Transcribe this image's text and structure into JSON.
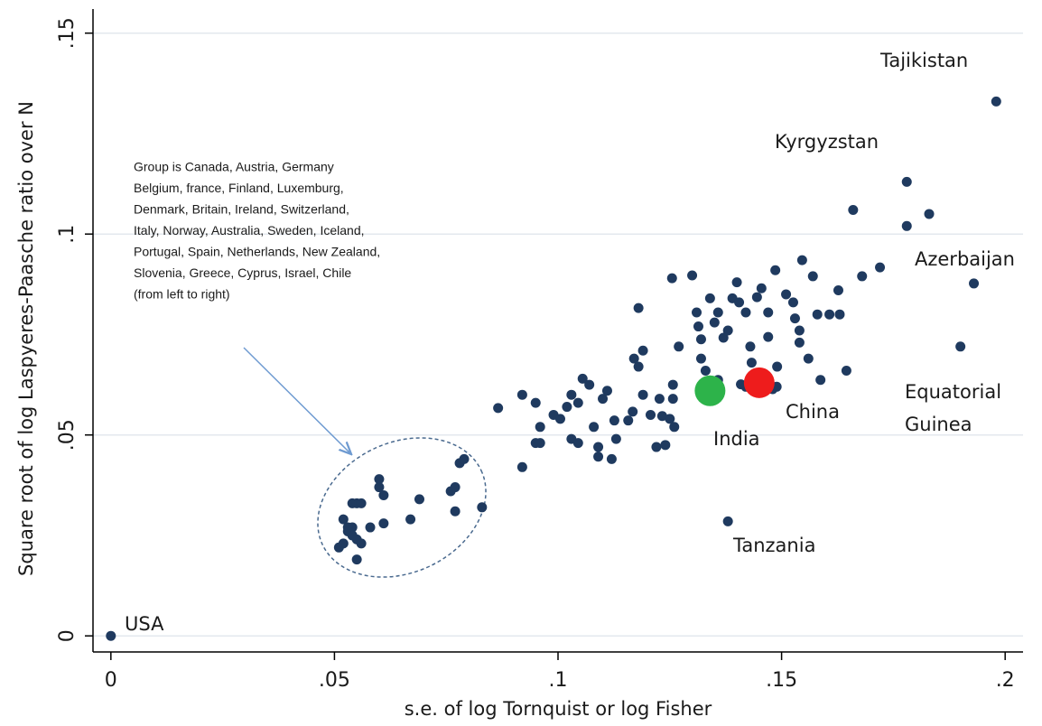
{
  "chart_data": {
    "type": "scatter",
    "x_label": "s.e. of log Tornquist or log Fisher",
    "y_label": "Square root of log Laspyeres-Paasche ratio over N",
    "xlim": [
      -0.004,
      0.204
    ],
    "ylim": [
      -0.004,
      0.156
    ],
    "xticks": [
      0,
      {
        "value": 0.05,
        "label": ".05"
      },
      {
        "value": 0.1,
        "label": ".1"
      },
      {
        "value": 0.15,
        "label": ".15"
      },
      {
        "value": 0.2,
        "label": ".2"
      }
    ],
    "yticks": [
      0,
      {
        "value": 0.05,
        "label": ".05"
      },
      {
        "value": 0.1,
        "label": ".1"
      },
      {
        "value": 0.15,
        "label": ".15"
      }
    ],
    "grid": true,
    "series": [
      {
        "color": "#1f3a5f",
        "x": [
          0,
          0.138,
          0.198,
          0.178,
          0.178,
          0.183,
          0.166,
          0.193,
          0.19,
          0.051,
          0.052,
          0.053,
          0.054,
          0.054,
          0.055,
          0.055,
          0.056,
          0.054,
          0.055,
          0.056,
          0.052,
          0.053,
          0.058,
          0.061,
          0.06,
          0.06,
          0.061,
          0.067,
          0.069,
          0.076,
          0.077,
          0.077,
          0.078,
          0.079,
          0.083,
          0.0866,
          0.092,
          0.092,
          0.095,
          0.096,
          0.095,
          0.096,
          0.099,
          0.1005,
          0.102,
          0.103,
          0.1045,
          0.1055,
          0.107,
          0.103,
          0.1045,
          0.108,
          0.109,
          0.109,
          0.112,
          0.11,
          0.111,
          0.1126,
          0.113,
          0.1157,
          0.1167,
          0.117,
          0.118,
          0.118,
          0.119,
          0.1207,
          0.119,
          0.1227,
          0.1233,
          0.122,
          0.124,
          0.125,
          0.126,
          0.1255,
          0.13,
          0.1257,
          0.1257,
          0.127,
          0.131,
          0.1314,
          0.132,
          0.132,
          0.133,
          0.134,
          0.135,
          0.1358,
          0.137,
          0.138,
          0.139,
          0.14,
          0.1405,
          0.142,
          0.143,
          0.1433,
          0.1445,
          0.1455,
          0.147,
          0.147,
          0.1486,
          0.148,
          0.149,
          0.151,
          0.1526,
          0.153,
          0.154,
          0.154,
          0.1546,
          0.157,
          0.156,
          0.158,
          0.1587,
          0.1607,
          0.1627,
          0.163,
          0.1645,
          0.168,
          0.172,
          0.1409,
          0.142,
          0.1489,
          0.1358
        ],
        "values": [
          0,
          0.0285,
          0.133,
          0.113,
          0.102,
          0.105,
          0.106,
          0.0877,
          0.072,
          0.022,
          0.023,
          0.026,
          0.027,
          0.025,
          0.024,
          0.019,
          0.023,
          0.033,
          0.033,
          0.033,
          0.029,
          0.027,
          0.027,
          0.028,
          0.037,
          0.039,
          0.035,
          0.029,
          0.034,
          0.036,
          0.037,
          0.031,
          0.043,
          0.044,
          0.032,
          0.0567,
          0.06,
          0.042,
          0.058,
          0.052,
          0.048,
          0.048,
          0.055,
          0.054,
          0.057,
          0.06,
          0.058,
          0.064,
          0.0625,
          0.049,
          0.048,
          0.052,
          0.047,
          0.0446,
          0.044,
          0.059,
          0.061,
          0.0536,
          0.049,
          0.0536,
          0.0558,
          0.069,
          0.067,
          0.0816,
          0.06,
          0.055,
          0.071,
          0.059,
          0.0547,
          0.047,
          0.0475,
          0.054,
          0.052,
          0.089,
          0.0897,
          0.0625,
          0.059,
          0.072,
          0.0805,
          0.077,
          0.0738,
          0.069,
          0.066,
          0.084,
          0.078,
          0.0805,
          0.0742,
          0.076,
          0.084,
          0.088,
          0.083,
          0.0805,
          0.072,
          0.068,
          0.0843,
          0.0865,
          0.0805,
          0.0744,
          0.091,
          0.0614,
          0.067,
          0.085,
          0.083,
          0.079,
          0.076,
          0.073,
          0.0935,
          0.0895,
          0.069,
          0.08,
          0.0637,
          0.08,
          0.086,
          0.08,
          0.066,
          0.0895,
          0.0917,
          0.0626,
          0.062,
          0.062,
          0.0637
        ]
      },
      {
        "color": "#2db34a",
        "x": [
          0.134
        ],
        "values": [
          0.061
        ]
      },
      {
        "color": "#ee1c1c",
        "x": [
          0.145
        ],
        "values": [
          0.063
        ]
      }
    ],
    "annotations": [
      "Tajikistan",
      "Kyrgyzstan",
      "Azerbaijan",
      "Equatorial",
      "Guinea",
      "China",
      "India",
      "Tanzania",
      "USA"
    ],
    "note_lines": [
      "Group is  Canada,  Austria, Germany",
      "Belgium,  france,  Finland,  Luxemburg,",
      "Denmark,  Britain,  Ireland,  Switzerland,",
      "Italy,  Norway,  Australia,  Sweden,  Iceland,",
      "Portugal,  Spain,  Netherlands,   New Zealand,",
      "Slovenia,  Greece,  Cyprus, Israel,  Chile",
      "(from left to right)"
    ]
  }
}
